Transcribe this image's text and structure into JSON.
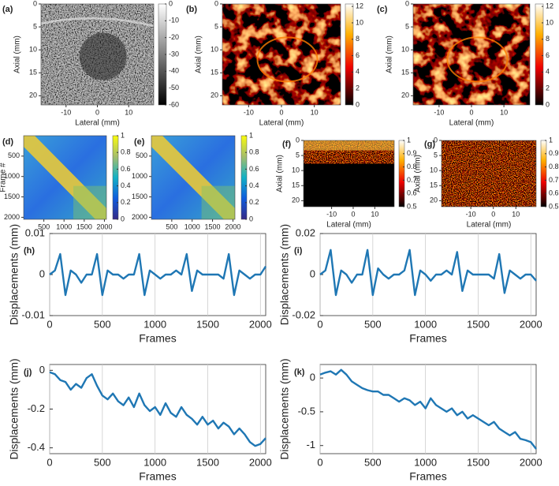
{
  "chart_data": [
    {
      "type": "image",
      "panel_label": "(a)",
      "colormap": "gray",
      "xlabel": "Lateral (mm)",
      "ylabel": "Axial (mm)",
      "xlim": [
        -18,
        18
      ],
      "xticks": [
        -10,
        0,
        10
      ],
      "ylim": [
        0,
        22
      ],
      "yticks": [
        0,
        5,
        10,
        15,
        20
      ],
      "y_inverted": true,
      "colorbar_lim": [
        -60,
        0
      ],
      "colorbar_ticks": [
        0,
        -10,
        -20,
        -30,
        -40,
        -50,
        -60
      ]
    },
    {
      "type": "image",
      "panel_label": "(b)",
      "colormap": "hot",
      "xlabel": "Lateral (mm)",
      "ylabel": "Axial (mm)",
      "xlim": [
        -18,
        18
      ],
      "xticks": [
        -10,
        0,
        10
      ],
      "ylim": [
        0,
        22
      ],
      "yticks": [
        0,
        5,
        10,
        15,
        20
      ],
      "y_inverted": true,
      "colorbar_lim": [
        0,
        12.3
      ],
      "colorbar_ticks": [
        0,
        2,
        4,
        6,
        8,
        10,
        12
      ]
    },
    {
      "type": "image",
      "panel_label": "(c)",
      "colormap": "hot",
      "xlabel": "Lateral (mm)",
      "ylabel": "Axial (mm)",
      "xlim": [
        -18,
        18
      ],
      "xticks": [
        -10,
        0,
        10
      ],
      "ylim": [
        0,
        22
      ],
      "yticks": [
        0,
        5,
        10,
        15,
        20
      ],
      "y_inverted": true,
      "colorbar_lim": [
        0,
        12.3
      ],
      "colorbar_ticks": [
        0,
        2,
        4,
        6,
        8,
        10,
        12
      ]
    },
    {
      "type": "matrix",
      "panel_label": "(d)",
      "colormap": "parula",
      "xlabel": "Frame #",
      "ylabel": "Frame #",
      "xlim": [
        0,
        2050
      ],
      "xticks": [
        500,
        1000,
        1500,
        2000
      ],
      "ylim": [
        0,
        2050
      ],
      "yticks": [
        500,
        1000,
        1500,
        2000
      ],
      "y_inverted": true,
      "colorbar_lim": [
        0,
        1
      ],
      "colorbar_ticks": [
        0,
        0.2,
        0.4,
        0.6,
        0.8,
        1
      ]
    },
    {
      "type": "matrix",
      "panel_label": "(e)",
      "colormap": "parula",
      "xlabel": "Frame #",
      "xlim": [
        0,
        2050
      ],
      "xticks": [
        500,
        1000,
        1500,
        2000
      ],
      "ylim": [
        0,
        2050
      ],
      "yticks": [
        500,
        1000,
        1500,
        2000
      ],
      "y_inverted": true,
      "colorbar_lim": [
        0,
        1
      ],
      "colorbar_ticks": [
        0,
        0.2,
        0.4,
        0.6,
        0.8,
        1
      ]
    },
    {
      "type": "image",
      "panel_label": "(f)",
      "colormap": "hot",
      "xlabel": "Lateral (mm)",
      "ylabel": "Axial (mm)",
      "xlim": [
        -23,
        19
      ],
      "xticks": [
        -10,
        0,
        10
      ],
      "ylim": [
        0,
        22
      ],
      "yticks": [
        0,
        5,
        10,
        15,
        20
      ],
      "y_inverted": true,
      "colorbar_lim": [
        0.5,
        1
      ],
      "colorbar_ticks": [
        0.5,
        0.6,
        0.7,
        0.8,
        0.9,
        1
      ]
    },
    {
      "type": "image",
      "panel_label": "(g)",
      "colormap": "hot",
      "xlabel": "Lateral (mm)",
      "ylabel": "Axial (mm)",
      "xlim": [
        -23,
        19
      ],
      "xticks": [
        -10,
        0,
        10
      ],
      "ylim": [
        0,
        22
      ],
      "yticks": [
        0,
        5,
        10,
        15,
        20
      ],
      "y_inverted": true,
      "colorbar_lim": [
        0.5,
        1
      ],
      "colorbar_ticks": [
        0.5,
        0.6,
        0.7,
        0.8,
        0.9,
        1
      ]
    },
    {
      "type": "line",
      "panel_label": "(h)",
      "xlabel": "Frames",
      "ylabel": "Displacements (mm)",
      "color": "#1f77b4",
      "grid": "x",
      "x": [
        0,
        50,
        100,
        150,
        200,
        250,
        300,
        350,
        400,
        450,
        500,
        550,
        600,
        650,
        700,
        750,
        800,
        850,
        900,
        950,
        1000,
        1050,
        1100,
        1150,
        1200,
        1250,
        1300,
        1350,
        1400,
        1450,
        1500,
        1550,
        1600,
        1650,
        1700,
        1750,
        1800,
        1850,
        1900,
        1950,
        2000,
        2050
      ],
      "values": [
        0,
        0.001,
        0.005,
        -0.005,
        0.001,
        0,
        -0.002,
        0,
        0,
        0.005,
        -0.005,
        0.001,
        0,
        0,
        -0.001,
        0,
        0,
        0.005,
        -0.005,
        0.001,
        0,
        -0.001,
        0,
        0,
        0.001,
        0,
        0.005,
        -0.004,
        0.001,
        0,
        0,
        0,
        0,
        -0.001,
        0.005,
        -0.005,
        0.001,
        0,
        -0.001,
        0,
        0,
        0.002
      ],
      "xlim": [
        0,
        2050
      ],
      "xticks": [
        0,
        500,
        1000,
        1500,
        2000
      ],
      "ylim": [
        -0.01,
        0.01
      ],
      "yticks": [
        -0.01,
        0,
        0.01
      ]
    },
    {
      "type": "line",
      "panel_label": "(i)",
      "xlabel": "Frames",
      "ylabel": "Displacements (mm)",
      "color": "#1f77b4",
      "grid": "x",
      "x": [
        0,
        50,
        100,
        150,
        200,
        250,
        300,
        350,
        400,
        450,
        500,
        550,
        600,
        650,
        700,
        750,
        800,
        850,
        900,
        950,
        1000,
        1050,
        1100,
        1150,
        1200,
        1250,
        1300,
        1350,
        1400,
        1450,
        1500,
        1550,
        1600,
        1650,
        1700,
        1750,
        1800,
        1850,
        1900,
        1950,
        2000,
        2050
      ],
      "values": [
        0,
        0.002,
        0.012,
        -0.01,
        0.002,
        0,
        -0.004,
        0,
        0,
        0.012,
        -0.01,
        0.003,
        0,
        -0.002,
        0,
        0,
        0.002,
        0.012,
        -0.01,
        0.002,
        0,
        -0.003,
        0,
        0,
        0.002,
        0,
        0.011,
        -0.008,
        0.002,
        0,
        0,
        0,
        0,
        -0.002,
        0.01,
        -0.009,
        0.002,
        0,
        -0.002,
        0,
        0,
        -0.003
      ],
      "xlim": [
        0,
        2050
      ],
      "xticks": [
        0,
        500,
        1000,
        1500,
        2000
      ],
      "ylim": [
        -0.02,
        0.02
      ],
      "yticks": [
        -0.02,
        0,
        0.02
      ]
    },
    {
      "type": "line",
      "panel_label": "(j)",
      "xlabel": "Frames",
      "ylabel": "Displacements (mm)",
      "color": "#1f77b4",
      "grid": "x",
      "x": [
        0,
        50,
        100,
        150,
        200,
        250,
        300,
        350,
        400,
        450,
        500,
        550,
        600,
        650,
        700,
        750,
        800,
        850,
        900,
        950,
        1000,
        1050,
        1100,
        1150,
        1200,
        1250,
        1300,
        1350,
        1400,
        1450,
        1500,
        1550,
        1600,
        1650,
        1700,
        1750,
        1800,
        1850,
        1900,
        1950,
        2000,
        2050
      ],
      "values": [
        -0.01,
        -0.02,
        -0.05,
        -0.06,
        -0.1,
        -0.07,
        -0.09,
        -0.04,
        -0.02,
        -0.08,
        -0.13,
        -0.15,
        -0.12,
        -0.16,
        -0.18,
        -0.14,
        -0.19,
        -0.12,
        -0.18,
        -0.21,
        -0.19,
        -0.23,
        -0.17,
        -0.22,
        -0.24,
        -0.19,
        -0.23,
        -0.25,
        -0.28,
        -0.24,
        -0.28,
        -0.26,
        -0.3,
        -0.27,
        -0.29,
        -0.33,
        -0.3,
        -0.33,
        -0.37,
        -0.39,
        -0.38,
        -0.35
      ],
      "xlim": [
        0,
        2050
      ],
      "xticks": [
        0,
        500,
        1000,
        1500,
        2000
      ],
      "ylim": [
        -0.43,
        0.03
      ],
      "yticks": [
        -0.4,
        -0.2,
        0
      ]
    },
    {
      "type": "line",
      "panel_label": "(k)",
      "xlabel": "Frames",
      "ylabel": "Displacements (mm)",
      "color": "#1f77b4",
      "grid": "x",
      "x": [
        0,
        50,
        100,
        150,
        200,
        250,
        300,
        350,
        400,
        450,
        500,
        550,
        600,
        650,
        700,
        750,
        800,
        850,
        900,
        950,
        1000,
        1050,
        1100,
        1150,
        1200,
        1250,
        1300,
        1350,
        1400,
        1450,
        1500,
        1550,
        1600,
        1650,
        1700,
        1750,
        1800,
        1850,
        1900,
        1950,
        2000,
        2050
      ],
      "values": [
        0.05,
        0.08,
        0.1,
        0.05,
        0.12,
        0.05,
        -0.05,
        -0.1,
        -0.15,
        -0.18,
        -0.2,
        -0.2,
        -0.25,
        -0.25,
        -0.3,
        -0.35,
        -0.3,
        -0.33,
        -0.4,
        -0.35,
        -0.45,
        -0.3,
        -0.4,
        -0.45,
        -0.5,
        -0.45,
        -0.55,
        -0.5,
        -0.6,
        -0.55,
        -0.6,
        -0.65,
        -0.7,
        -0.65,
        -0.75,
        -0.8,
        -0.85,
        -0.8,
        -0.9,
        -0.92,
        -0.95,
        -1.05
      ],
      "xlim": [
        0,
        2050
      ],
      "xticks": [
        0,
        500,
        1000,
        1500,
        2000
      ],
      "ylim": [
        -1.12,
        0.2
      ],
      "yticks": [
        -1,
        -0.5,
        0
      ]
    }
  ]
}
